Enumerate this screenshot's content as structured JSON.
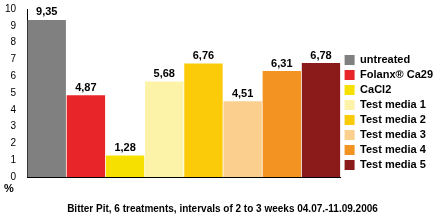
{
  "chart_data": {
    "type": "bar",
    "title": "Bitter Pit, 6 treatments, intervals of 2 to 3 weeks 04.07.-11.09.2006",
    "y_label": "%",
    "categories": [
      "untreated",
      "Folanx® Ca29",
      "CaCl2",
      "Test media 1",
      "Test media 2",
      "Test media 3",
      "Test media 4",
      "Test media 5"
    ],
    "values": [
      9.35,
      4.87,
      1.28,
      5.68,
      6.76,
      4.51,
      6.31,
      6.78
    ],
    "value_labels": [
      "9,35",
      "4,87",
      "1,28",
      "5,68",
      "6,76",
      "4,51",
      "6,31",
      "6,78"
    ],
    "colors": [
      "#808080",
      "#e8262a",
      "#f5e000",
      "#fcf3a8",
      "#fbcb0a",
      "#fbcf8e",
      "#f29322",
      "#8b1a1a"
    ],
    "ylim": [
      0,
      10
    ],
    "yticks": [
      0,
      1,
      2,
      3,
      4,
      5,
      6,
      7,
      8,
      9,
      10
    ],
    "grid": false,
    "legend": "right",
    "data_labels": true,
    "tick_labels": "y"
  }
}
